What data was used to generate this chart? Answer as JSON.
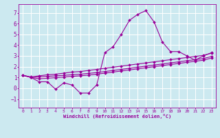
{
  "xlabel": "Windchill (Refroidissement éolien,°C)",
  "xlim": [
    -0.5,
    23.5
  ],
  "ylim": [
    -1.8,
    7.8
  ],
  "yticks": [
    -1,
    0,
    1,
    2,
    3,
    4,
    5,
    6,
    7
  ],
  "x_ticks": [
    0,
    1,
    2,
    3,
    4,
    5,
    6,
    7,
    8,
    9,
    10,
    11,
    12,
    13,
    14,
    15,
    16,
    17,
    18,
    19,
    20,
    21,
    22,
    23
  ],
  "background_color": "#cce9f0",
  "grid_color": "#ffffff",
  "line_color": "#990099",
  "line1_y": [
    1.2,
    1.0,
    0.6,
    0.6,
    -0.1,
    0.5,
    0.3,
    -0.45,
    -0.45,
    0.3,
    3.3,
    3.85,
    5.0,
    6.3,
    6.85,
    7.2,
    6.15,
    4.3,
    3.4,
    3.4,
    3.0,
    2.6,
    3.0,
    3.3
  ],
  "line2_y": [
    1.2,
    1.05,
    1.15,
    1.25,
    1.3,
    1.4,
    1.5,
    1.55,
    1.65,
    1.75,
    1.85,
    1.95,
    2.05,
    2.15,
    2.25,
    2.35,
    2.45,
    2.55,
    2.65,
    2.75,
    2.85,
    2.95,
    3.05,
    3.25
  ],
  "line3_y": [
    1.2,
    1.0,
    1.05,
    1.1,
    1.15,
    1.2,
    1.25,
    1.3,
    1.38,
    1.45,
    1.55,
    1.65,
    1.75,
    1.85,
    1.95,
    2.05,
    2.15,
    2.25,
    2.35,
    2.45,
    2.55,
    2.65,
    2.75,
    2.95
  ],
  "line4_y": [
    1.2,
    1.0,
    0.88,
    0.93,
    0.98,
    1.03,
    1.1,
    1.15,
    1.22,
    1.3,
    1.4,
    1.5,
    1.6,
    1.7,
    1.8,
    1.9,
    2.0,
    2.1,
    2.2,
    2.3,
    2.4,
    2.5,
    2.6,
    2.8
  ]
}
